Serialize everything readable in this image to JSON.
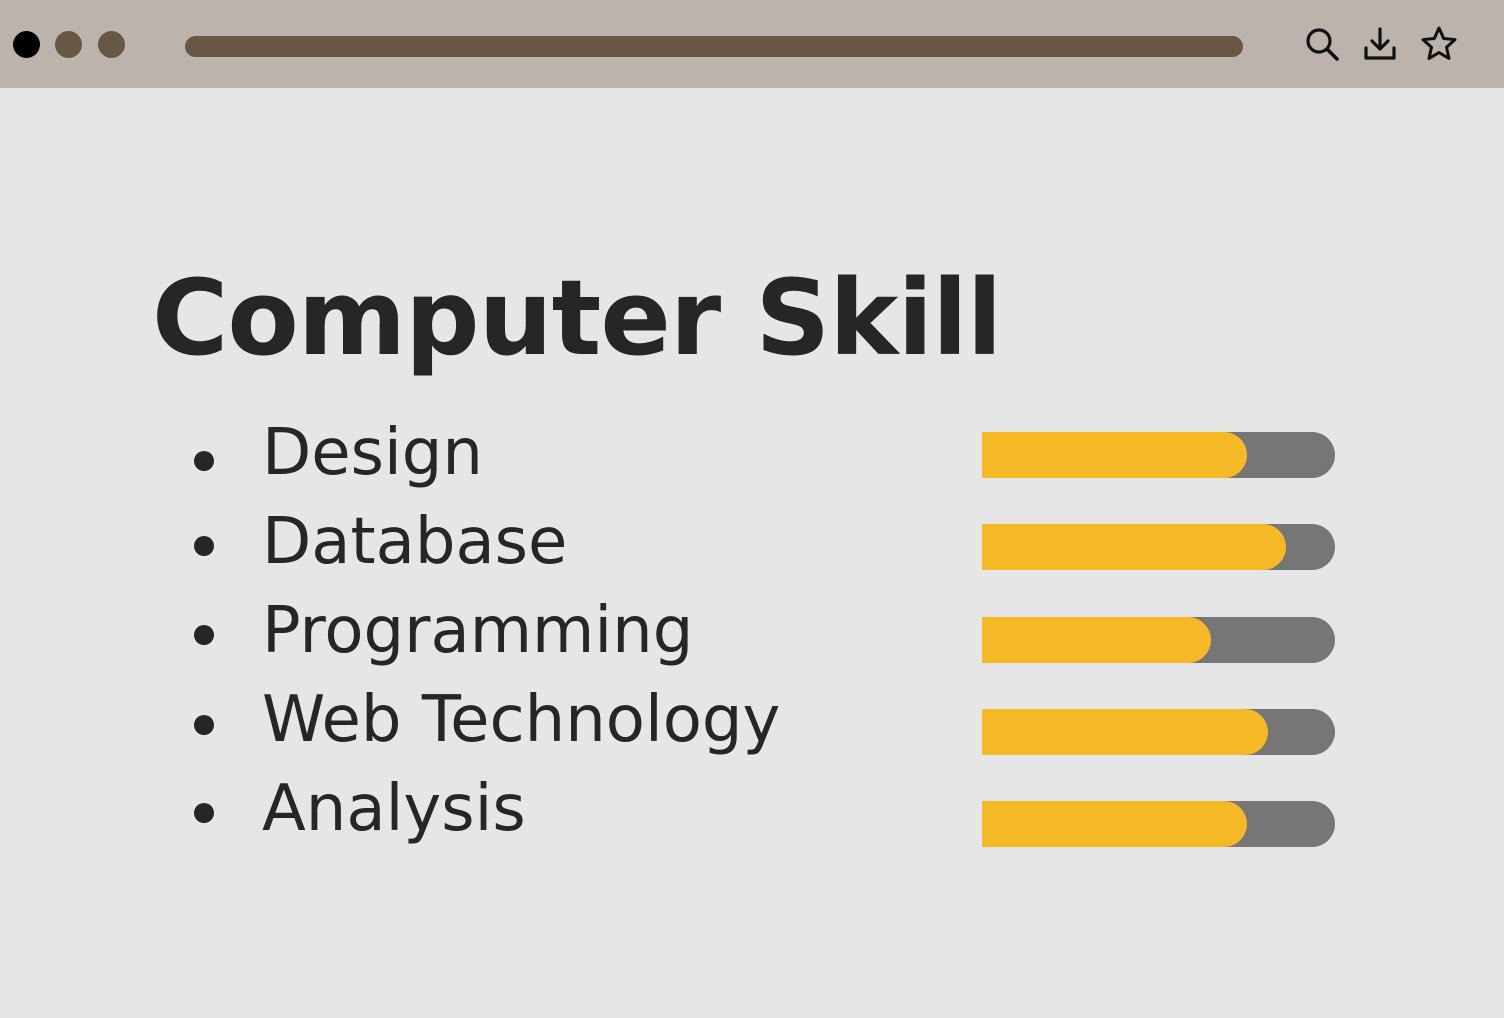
{
  "window": {
    "controls": [
      {
        "name": "close",
        "color": "#000000"
      },
      {
        "name": "minimize",
        "color": "#665845"
      },
      {
        "name": "maximize",
        "color": "#665845"
      }
    ],
    "address_bar_color": "#665845",
    "topbar_color": "#bdb3ad",
    "toolbar_icons": [
      "search-icon",
      "download-icon",
      "star-icon"
    ]
  },
  "main": {
    "title": "Computer Skill",
    "skills": [
      {
        "label": "Design",
        "level": 0.75
      },
      {
        "label": "Database",
        "level": 0.86
      },
      {
        "label": "Programming",
        "level": 0.65
      },
      {
        "label": "Web Technology",
        "level": 0.81
      },
      {
        "label": "Analysis",
        "level": 0.75
      }
    ]
  },
  "colors": {
    "background": "#e6e6e6",
    "text": "#262626",
    "bar_fill": "#f5b926",
    "bar_track": "#767676"
  }
}
